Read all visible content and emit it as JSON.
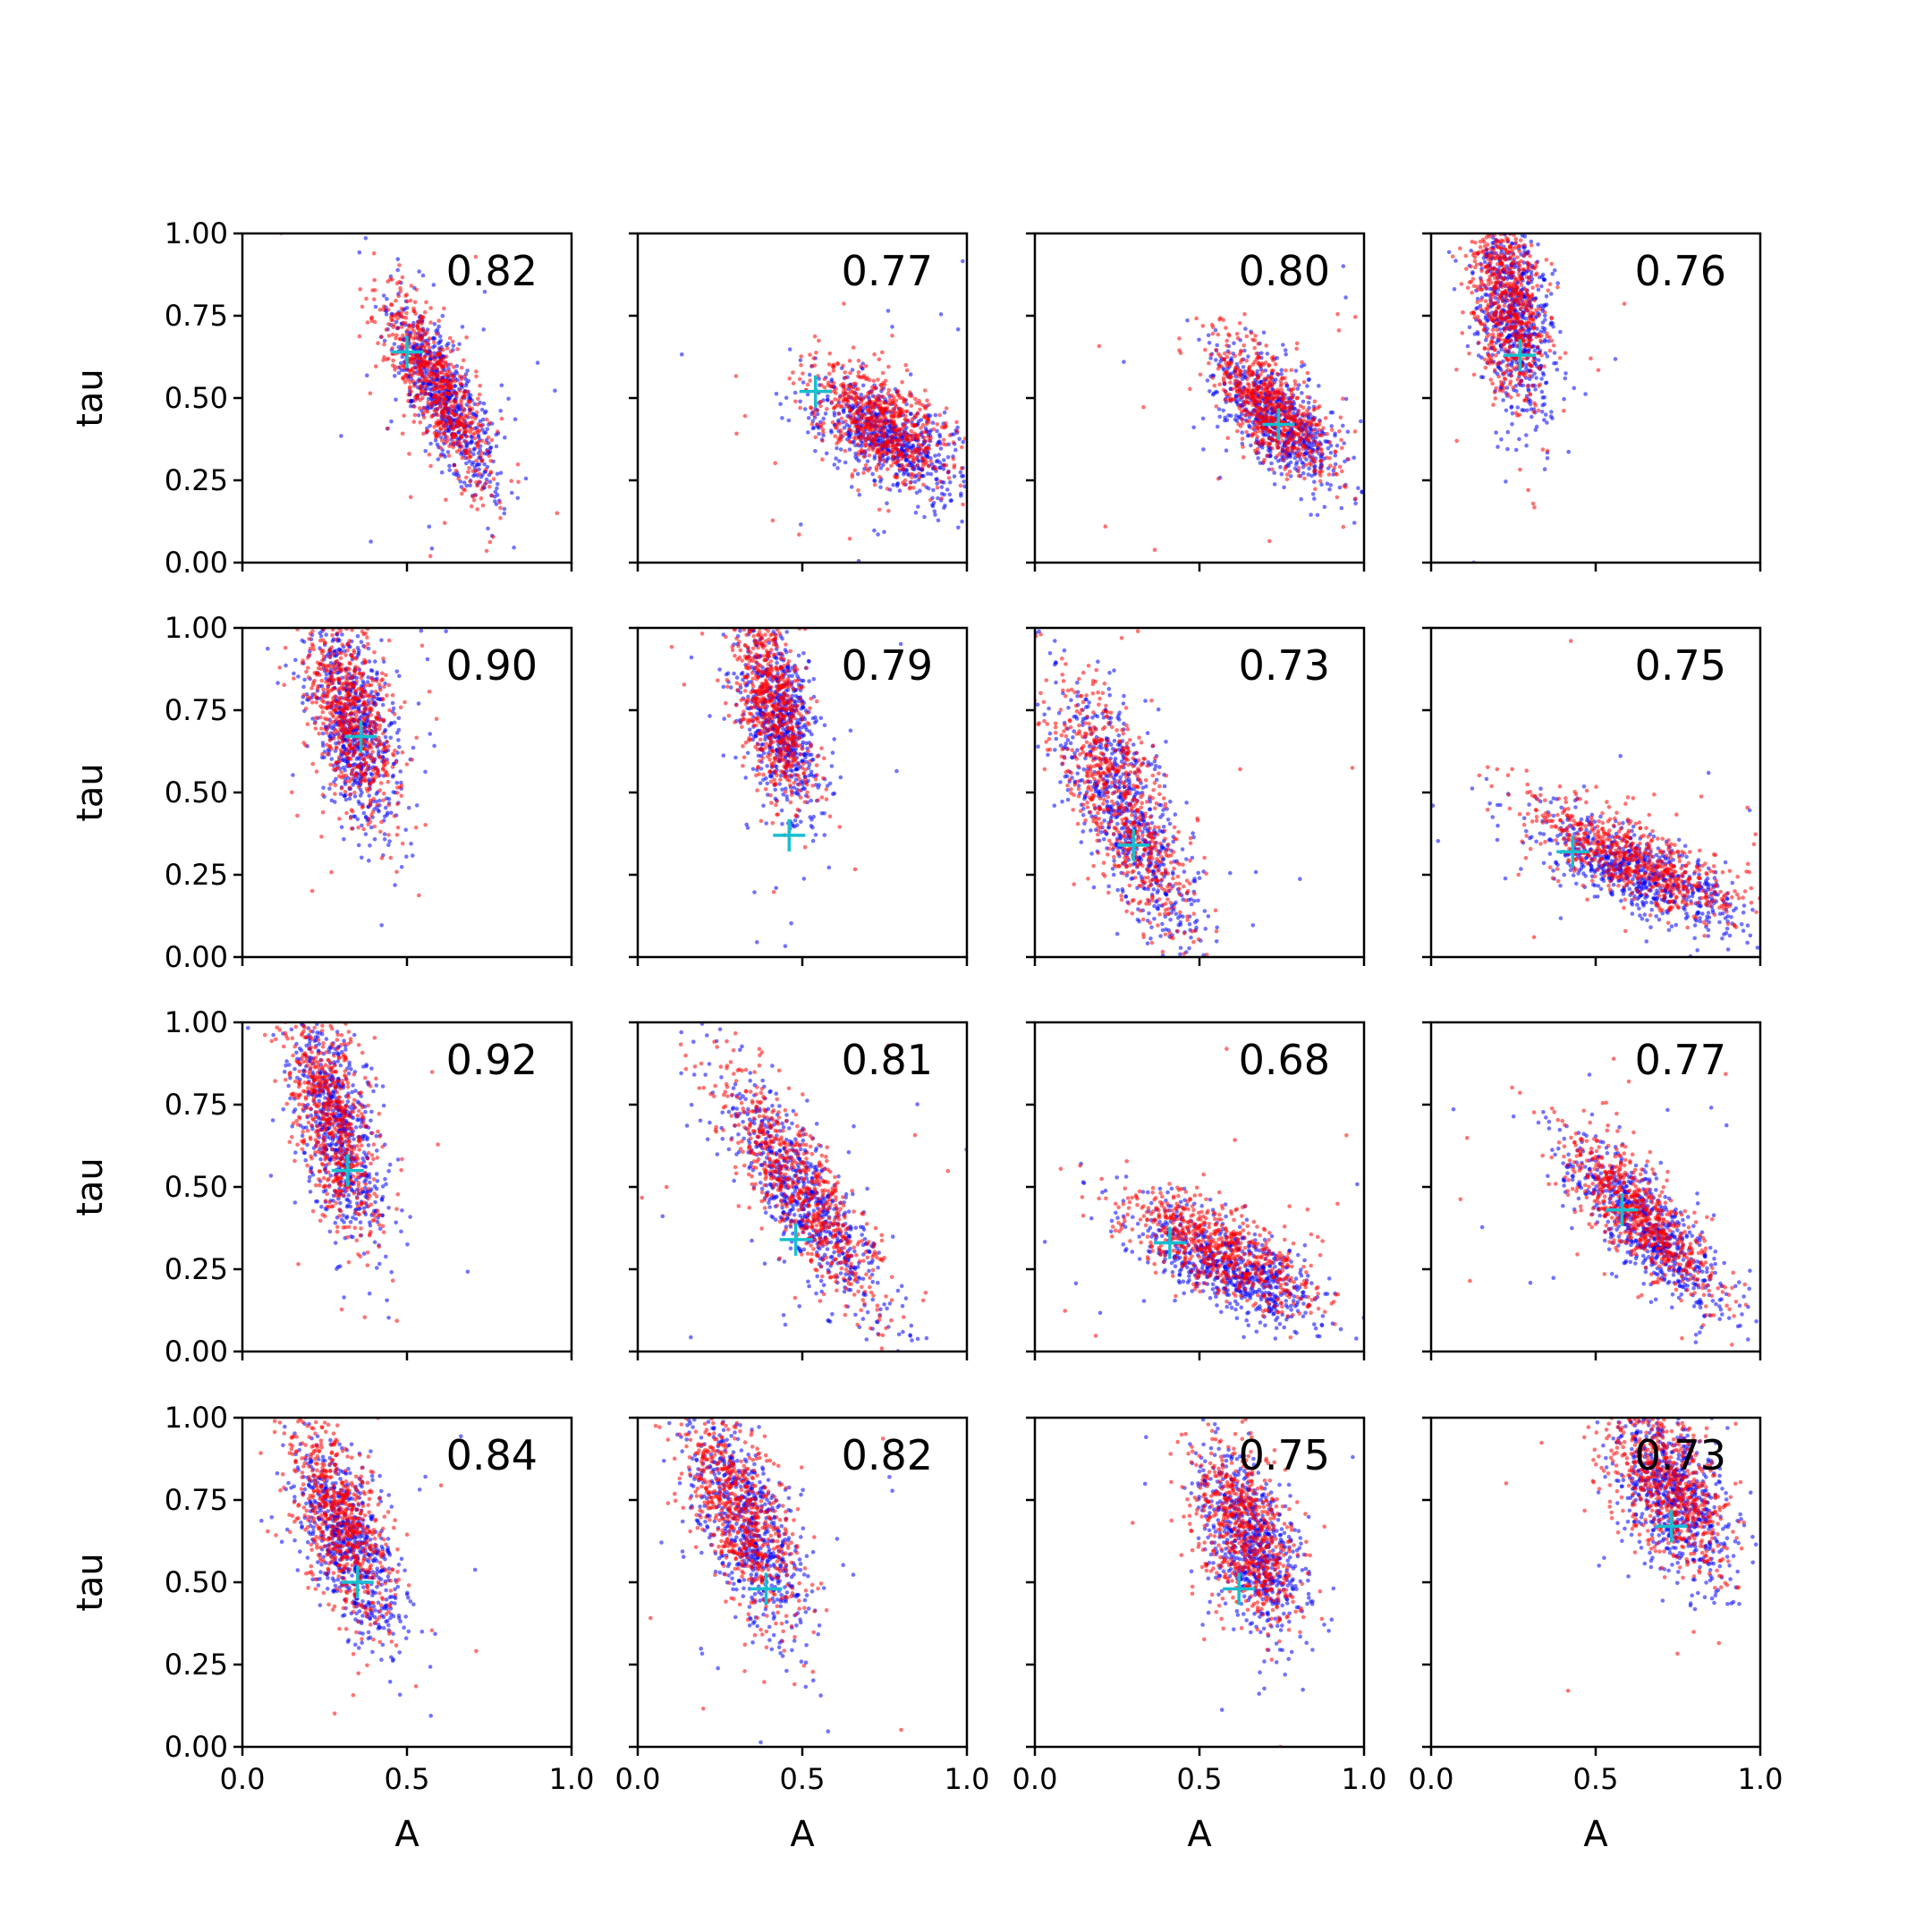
{
  "chart_data": {
    "type": "scatter",
    "layout": "4x4 grid of subplots, shared x and y axes",
    "xlabel": "A",
    "ylabel": "tau",
    "xlim": [
      0.0,
      1.0
    ],
    "ylim": [
      0.0,
      1.0
    ],
    "x_ticks": [
      "0.0",
      "0.5",
      "1.0"
    ],
    "y_ticks": [
      "0.00",
      "0.25",
      "0.50",
      "0.75",
      "1.00"
    ],
    "grid": false,
    "series_colors": {
      "first": "#0000ff",
      "second": "#ff0000",
      "marker": "#17becf"
    },
    "panels": [
      {
        "corr": "0.82",
        "marker": [
          0.5,
          0.64
        ],
        "cloud": {
          "cx": 0.6,
          "cy": 0.52,
          "sx": 0.08,
          "sy": 0.14,
          "rho": -0.75
        }
      },
      {
        "corr": "0.77",
        "marker": [
          0.54,
          0.52
        ],
        "cloud": {
          "cx": 0.75,
          "cy": 0.4,
          "sx": 0.11,
          "sy": 0.09,
          "rho": -0.55
        }
      },
      {
        "corr": "0.80",
        "marker": [
          0.74,
          0.42
        ],
        "cloud": {
          "cx": 0.73,
          "cy": 0.45,
          "sx": 0.09,
          "sy": 0.1,
          "rho": -0.65
        }
      },
      {
        "corr": "0.76",
        "marker": [
          0.27,
          0.63
        ],
        "cloud": {
          "cx": 0.24,
          "cy": 0.78,
          "sx": 0.06,
          "sy": 0.16,
          "rho": -0.35
        }
      },
      {
        "corr": "0.90",
        "marker": [
          0.36,
          0.67
        ],
        "cloud": {
          "cx": 0.33,
          "cy": 0.72,
          "sx": 0.07,
          "sy": 0.16,
          "rho": -0.5
        }
      },
      {
        "corr": "0.79",
        "marker": [
          0.46,
          0.37
        ],
        "cloud": {
          "cx": 0.42,
          "cy": 0.75,
          "sx": 0.06,
          "sy": 0.15,
          "rho": -0.5
        }
      },
      {
        "corr": "0.73",
        "marker": [
          0.3,
          0.34
        ],
        "cloud": {
          "cx": 0.27,
          "cy": 0.45,
          "sx": 0.11,
          "sy": 0.2,
          "rho": -0.75
        }
      },
      {
        "corr": "0.75",
        "marker": [
          0.43,
          0.32
        ],
        "cloud": {
          "cx": 0.62,
          "cy": 0.28,
          "sx": 0.16,
          "sy": 0.09,
          "rho": -0.75
        }
      },
      {
        "corr": "0.92",
        "marker": [
          0.32,
          0.55
        ],
        "cloud": {
          "cx": 0.28,
          "cy": 0.7,
          "sx": 0.07,
          "sy": 0.18,
          "rho": -0.55
        }
      },
      {
        "corr": "0.81",
        "marker": [
          0.48,
          0.34
        ],
        "cloud": {
          "cx": 0.5,
          "cy": 0.48,
          "sx": 0.13,
          "sy": 0.19,
          "rho": -0.85
        }
      },
      {
        "corr": "0.68",
        "marker": [
          0.41,
          0.33
        ],
        "cloud": {
          "cx": 0.58,
          "cy": 0.28,
          "sx": 0.15,
          "sy": 0.09,
          "rho": -0.7
        }
      },
      {
        "corr": "0.77",
        "marker": [
          0.58,
          0.43
        ],
        "cloud": {
          "cx": 0.64,
          "cy": 0.4,
          "sx": 0.12,
          "sy": 0.13,
          "rho": -0.8
        }
      },
      {
        "corr": "0.84",
        "marker": [
          0.35,
          0.5
        ],
        "cloud": {
          "cx": 0.31,
          "cy": 0.66,
          "sx": 0.08,
          "sy": 0.16,
          "rho": -0.6
        }
      },
      {
        "corr": "0.82",
        "marker": [
          0.39,
          0.48
        ],
        "cloud": {
          "cx": 0.32,
          "cy": 0.7,
          "sx": 0.09,
          "sy": 0.17,
          "rho": -0.65
        }
      },
      {
        "corr": "0.75",
        "marker": [
          0.62,
          0.48
        ],
        "cloud": {
          "cx": 0.65,
          "cy": 0.63,
          "sx": 0.08,
          "sy": 0.14,
          "rho": -0.5
        }
      },
      {
        "corr": "0.73",
        "marker": [
          0.73,
          0.67
        ],
        "cloud": {
          "cx": 0.73,
          "cy": 0.78,
          "sx": 0.09,
          "sy": 0.13,
          "rho": -0.5
        }
      }
    ]
  }
}
